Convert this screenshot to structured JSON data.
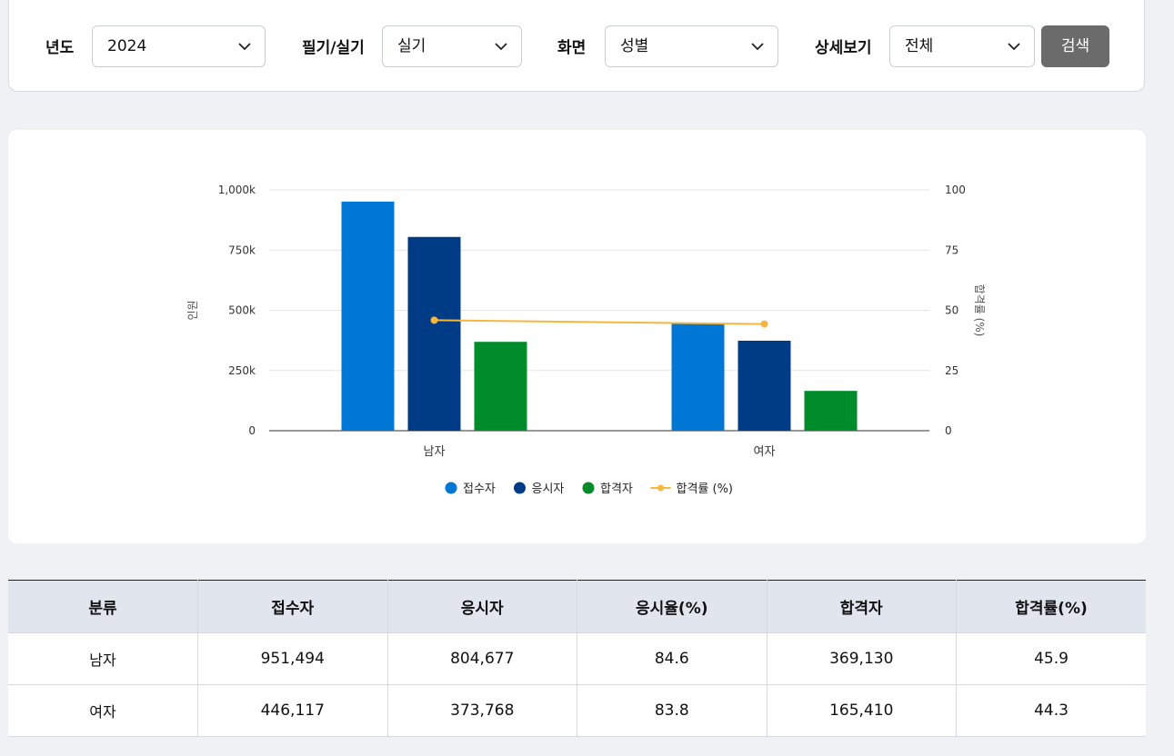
{
  "filters": {
    "year": {
      "label": "년도",
      "value": "2024"
    },
    "exam_type": {
      "label": "필기/실기",
      "value": "실기"
    },
    "view": {
      "label": "화면",
      "value": "성별"
    },
    "detail": {
      "label": "상세보기",
      "value": "전체"
    },
    "search_label": "검색"
  },
  "colors": {
    "applicants": "#0077d4",
    "takers": "#003b86",
    "passers": "#008c2a",
    "pass_rate": "#f6b73c"
  },
  "chart_data": {
    "type": "bar",
    "categories": [
      "남자",
      "여자"
    ],
    "series": [
      {
        "name": "접수자",
        "values": [
          951494,
          446117
        ]
      },
      {
        "name": "응시자",
        "values": [
          804677,
          373768
        ]
      },
      {
        "name": "합격자",
        "values": [
          369130,
          165410
        ]
      }
    ],
    "line_series": {
      "name": "합격률 (%)",
      "values": [
        45.9,
        44.3
      ],
      "axis": "right"
    },
    "ylabel": "인원",
    "y2label": "합격률 (%)",
    "ylim": [
      0,
      1000000
    ],
    "y2lim": [
      0,
      100
    ],
    "yticks": [
      "0",
      "250k",
      "500k",
      "750k",
      "1,000k"
    ],
    "y2ticks": [
      "0",
      "25",
      "50",
      "75",
      "100"
    ],
    "grid": true,
    "legend": "bottom-center"
  },
  "table": {
    "headers": [
      "분류",
      "접수자",
      "응시자",
      "응시율(%)",
      "합격자",
      "합격률(%)"
    ],
    "rows": [
      [
        "남자",
        "951,494",
        "804,677",
        "84.6",
        "369,130",
        "45.9"
      ],
      [
        "여자",
        "446,117",
        "373,768",
        "83.8",
        "165,410",
        "44.3"
      ]
    ]
  }
}
